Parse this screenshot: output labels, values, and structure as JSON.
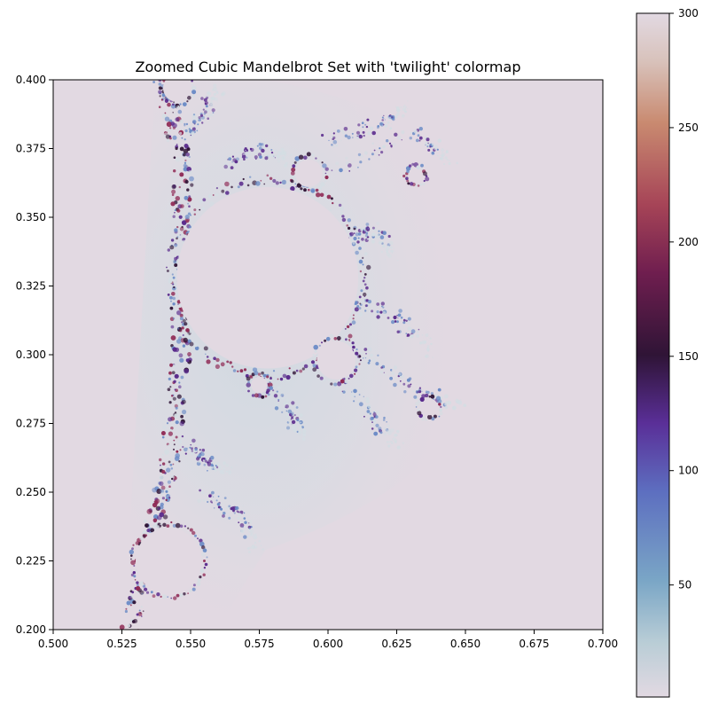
{
  "chart_data": {
    "type": "heatmap",
    "title": "Zoomed Cubic Mandelbrot Set with 'twilight' colormap",
    "xlabel": "",
    "ylabel": "",
    "xlim": [
      0.5,
      0.7
    ],
    "ylim": [
      0.2,
      0.4
    ],
    "x_ticks": [
      0.5,
      0.525,
      0.55,
      0.575,
      0.6,
      0.625,
      0.65,
      0.675,
      0.7
    ],
    "x_tick_labels": [
      "0.500",
      "0.525",
      "0.550",
      "0.575",
      "0.600",
      "0.625",
      "0.650",
      "0.675",
      "0.700"
    ],
    "y_ticks": [
      0.2,
      0.225,
      0.25,
      0.275,
      0.3,
      0.325,
      0.35,
      0.375,
      0.4
    ],
    "y_tick_labels": [
      "0.200",
      "0.225",
      "0.250",
      "0.275",
      "0.300",
      "0.325",
      "0.350",
      "0.375",
      "0.400"
    ],
    "colormap": "twilight",
    "colorbar": {
      "vmin": 1,
      "vmax": 300,
      "ticks": [
        50,
        100,
        150,
        200,
        250,
        300
      ],
      "tick_labels": [
        "50",
        "100",
        "150",
        "200",
        "250",
        "300"
      ]
    },
    "set_features": [
      {
        "kind": "bulb",
        "center": [
          0.578,
          0.328
        ],
        "radius": 0.033
      },
      {
        "kind": "bulb",
        "center": [
          0.542,
          0.225
        ],
        "radius": 0.012
      },
      {
        "kind": "bulb",
        "center": [
          0.603,
          0.298
        ],
        "radius": 0.007
      },
      {
        "kind": "bulb",
        "center": [
          0.593,
          0.366
        ],
        "radius": 0.005
      },
      {
        "kind": "bulb",
        "center": [
          0.545,
          0.397
        ],
        "radius": 0.005
      },
      {
        "kind": "bulb",
        "center": [
          0.575,
          0.289
        ],
        "radius": 0.003
      },
      {
        "kind": "bulb",
        "center": [
          0.637,
          0.281
        ],
        "radius": 0.003
      },
      {
        "kind": "bulb",
        "center": [
          0.632,
          0.365
        ],
        "radius": 0.0025
      }
    ],
    "colors": {
      "background": "#e2d9e2",
      "low": "#d4dde3",
      "mid_low": "#6b8bc6",
      "mid": "#5a2a8c",
      "dark": "#2f1436",
      "mid_high": "#8f2a55",
      "high": "#c98a70",
      "top": "#e2d9e2"
    }
  }
}
